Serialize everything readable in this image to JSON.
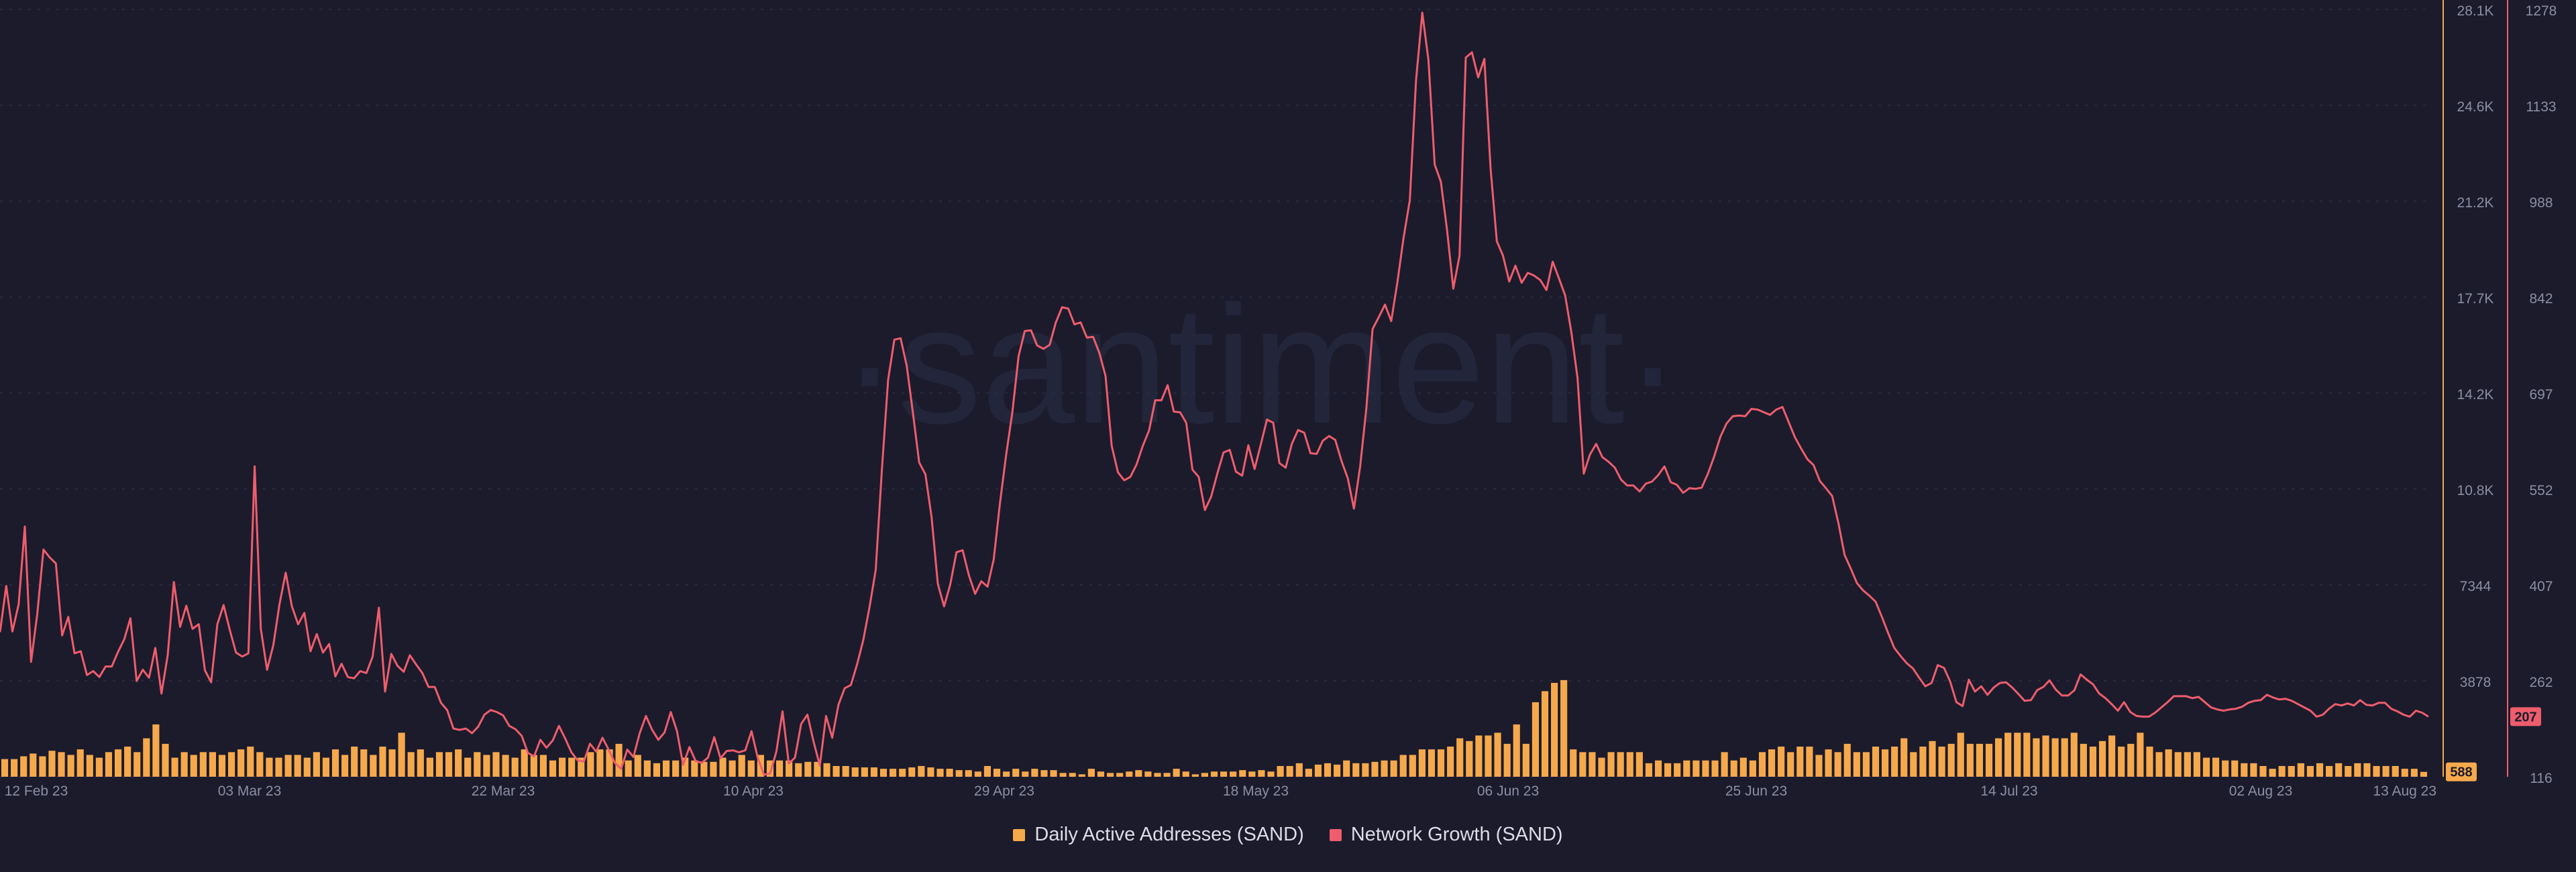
{
  "watermark": "·santiment·",
  "colors": {
    "background": "#1b1b2c",
    "bars": "#f6a94b",
    "line": "#ee5d6c",
    "axis_text": "#8c8fa3",
    "watermark": "#23263a"
  },
  "legend": [
    {
      "label": "Daily Active Addresses (SAND)",
      "color": "#f6a94b"
    },
    {
      "label": "Network Growth (SAND)",
      "color": "#ee5d6c"
    }
  ],
  "chart_data": {
    "type": "bar",
    "x_ticks": [
      "12 Feb 23",
      "03 Mar 23",
      "22 Mar 23",
      "10 Apr 23",
      "29 Apr 23",
      "18 May 23",
      "06 Jun 23",
      "25 Jun 23",
      "14 Jul 23",
      "02 Aug 23",
      "13 Aug 23"
    ],
    "y_left": {
      "ticks": [
        "28.1K",
        "24.6K",
        "21.2K",
        "17.7K",
        "14.2K",
        "10.8K",
        "7344",
        "3878"
      ],
      "range": [
        412,
        28100
      ]
    },
    "y_right": {
      "ticks": [
        "1278",
        "1133",
        "988",
        "842",
        "697",
        "552",
        "407",
        "262",
        "116"
      ],
      "range": [
        116,
        1278
      ]
    },
    "grid": true,
    "legend_position": "bottom",
    "last_value_badges": {
      "daily_active_addresses": "588",
      "network_growth": "207"
    },
    "series": [
      {
        "name": "Daily Active Addresses (SAND)",
        "type": "bar",
        "axis": "left",
        "values": [
          1050,
          1050,
          1150,
          1250,
          1150,
          1350,
          1300,
          1200,
          1400,
          1200,
          1100,
          1300,
          1400,
          1500,
          1300,
          1800,
          2300,
          1600,
          1100,
          1300,
          1200,
          1300,
          1300,
          1200,
          1300,
          1400,
          1500,
          1300,
          1100,
          1100,
          1200,
          1200,
          1100,
          1300,
          1100,
          1400,
          1200,
          1500,
          1400,
          1200,
          1500,
          1400,
          2000,
          1300,
          1400,
          1100,
          1300,
          1300,
          1400,
          1100,
          1300,
          1200,
          1300,
          1200,
          1100,
          1400,
          1200,
          1200,
          1000,
          1100,
          1100,
          1100,
          1300,
          1400,
          1400,
          1600,
          1000,
          1200,
          1000,
          900,
          1000,
          1000,
          1100,
          1000,
          950,
          950,
          1100,
          1000,
          1200,
          1000,
          1200,
          1000,
          1000,
          1000,
          900,
          950,
          950,
          900,
          800,
          800,
          750,
          750,
          750,
          700,
          700,
          700,
          750,
          800,
          750,
          700,
          700,
          650,
          650,
          600,
          800,
          700,
          600,
          700,
          600,
          700,
          650,
          650,
          550,
          550,
          500,
          700,
          600,
          550,
          550,
          600,
          650,
          600,
          550,
          550,
          700,
          600,
          500,
          550,
          600,
          600,
          600,
          650,
          600,
          650,
          600,
          800,
          800,
          900,
          700,
          850,
          900,
          850,
          1000,
          900,
          900,
          950,
          1000,
          1000,
          1200,
          1200,
          1400,
          1400,
          1400,
          1500,
          1800,
          1700,
          1900,
          1900,
          2000,
          1600,
          2300,
          1600,
          3100,
          3500,
          3800,
          3900,
          1400,
          1300,
          1300,
          1100,
          1300,
          1300,
          1300,
          1300,
          900,
          1000,
          900,
          900,
          1000,
          1000,
          1000,
          1000,
          1300,
          1000,
          1100,
          1000,
          1300,
          1400,
          1500,
          1300,
          1500,
          1500,
          1200,
          1400,
          1300,
          1600,
          1300,
          1300,
          1500,
          1400,
          1500,
          1800,
          1300,
          1500,
          1700,
          1500,
          1600,
          2000,
          1600,
          1600,
          1600,
          1800,
          2000,
          2000,
          2000,
          1800,
          1900,
          1800,
          1800,
          2000,
          1600,
          1500,
          1700,
          1900,
          1500,
          1600,
          2000,
          1500,
          1300,
          1400,
          1300,
          1300,
          1300,
          1100,
          1100,
          1000,
          1000,
          900,
          900,
          800,
          700,
          800,
          800,
          900,
          800,
          900,
          800,
          900,
          800,
          900,
          900,
          800,
          800,
          800,
          700,
          700,
          588
        ]
      },
      {
        "name": "Network Growth (SAND)",
        "type": "line",
        "axis": "right",
        "values": [
          335,
          405,
          336,
          377,
          495,
          290,
          362,
          460,
          448,
          439,
          330,
          358,
          303,
          306,
          270,
          276,
          267,
          283,
          283,
          305,
          324,
          356,
          261,
          278,
          266,
          311,
          242,
          300,
          411,
          343,
          375,
          340,
          347,
          277,
          259,
          347,
          376,
          338,
          304,
          298,
          303,
          586,
          340,
          278,
          315,
          377,
          425,
          374,
          347,
          364,
          306,
          332,
          304,
          317,
          268,
          287,
          267,
          265,
          276,
          273,
          298,
          372,
          245,
          302,
          284,
          275,
          300,
          286,
          273,
          252,
          252,
          228,
          217,
          189,
          187,
          189,
          182,
          192,
          210,
          217,
          214,
          209,
          193,
          188,
          178,
          152,
          147,
          172,
          160,
          171,
          193,
          174,
          153,
          141,
          139,
          166,
          154,
          175,
          157,
          137,
          128,
          157,
          146,
          182,
          208,
          187,
          172,
          183,
          214,
          185,
          134,
          161,
          140,
          137,
          145,
          176,
          144,
          155,
          156,
          153,
          156,
          185,
          145,
          119,
          121,
          154,
          215,
          136,
          145,
          196,
          210,
          169,
          133,
          208,
          175,
          225,
          250,
          255,
          286,
          323,
          373,
          429,
          582,
          717,
          778,
          780,
          738,
          666,
          592,
          574,
          509,
          408,
          374,
          407,
          456,
          459,
          421,
          393,
          412,
          404,
          445,
          530,
          603,
          668,
          753,
          791,
          792,
          769,
          764,
          770,
          804,
          827,
          825,
          801,
          804,
          781,
          782,
          758,
          723,
          617,
          577,
          565,
          570,
          589,
          617,
          640,
          686,
          686,
          709,
          669,
          668,
          652,
          581,
          570,
          520,
          540,
          575,
          607,
          611,
          578,
          572,
          618,
          582,
          619,
          657,
          652,
          591,
          584,
          620,
          641,
          637,
          606,
          605,
          625,
          632,
          626,
          594,
          568,
          522,
          586,
          674,
          794,
          812,
          831,
          806,
          865,
          933,
          989,
          1171,
          1273,
          1201,
          1043,
          1017,
          943,
          855,
          905,
          1205,
          1213,
          1175,
          1203,
          1037,
          927,
          905,
          866,
          890,
          864,
          879,
          875,
          868,
          853,
          896,
          871,
          845,
          789,
          720,
          575,
          604,
          620,
          600,
          593,
          584,
          566,
          557,
          557,
          548,
          560,
          563,
          573,
          586,
          562,
          558,
          546,
          553,
          552,
          554,
          575,
          601,
          631,
          651,
          662,
          663,
          662,
          673,
          672,
          668,
          664,
          672,
          676,
          653,
          630,
          613,
          597,
          588,
          564,
          553,
          541,
          500,
          452,
          431,
          409,
          398,
          390,
          381,
          358,
          334,
          311,
          299,
          288,
          280,
          266,
          253,
          258,
          285,
          281,
          260,
          229,
          223,
          263,
          245,
          253,
          240,
          251,
          258,
          259,
          251,
          241,
          231,
          232,
          247,
          252,
          262,
          248,
          239,
          239,
          247,
          271,
          263,
          256,
          242,
          235,
          226,
          216,
          229,
          214,
          208,
          207,
          207,
          213,
          221,
          229,
          238,
          238,
          238,
          235,
          237,
          229,
          221,
          218,
          216,
          218,
          219,
          222,
          228,
          231,
          232,
          240,
          236,
          233,
          234,
          231,
          226,
          221,
          216,
          207,
          210,
          219,
          226,
          224,
          227,
          224,
          232,
          225,
          224,
          228,
          228,
          219,
          215,
          210,
          207,
          216,
          213,
          207
        ]
      }
    ]
  }
}
